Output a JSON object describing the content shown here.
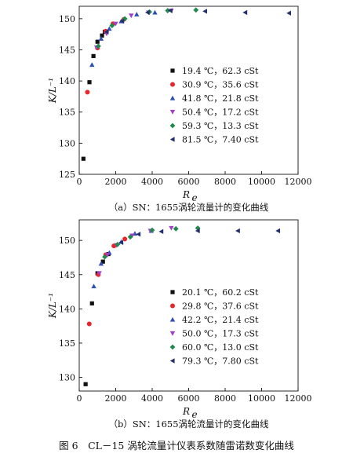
{
  "figure_caption": "图 6　CL－15 涡轮流量计仪表系数随雷诺数变化曲线",
  "chart_data": [
    {
      "type": "scatter",
      "caption": "（a）SN：1655涡轮流量计的变化曲线",
      "xlabel_main": "R",
      "xlabel_sub": "e",
      "ylabel": "K/L⁻¹",
      "xlim": [
        0,
        12000
      ],
      "ylim": [
        125,
        152
      ],
      "xticks": [
        0,
        2000,
        4000,
        6000,
        8000,
        10000,
        12000
      ],
      "yticks": [
        125,
        130,
        135,
        140,
        145,
        150
      ],
      "series": [
        {
          "name": "19.4 ℃，62.3 cSt",
          "marker": "square",
          "color": "#111111",
          "points": [
            [
              230,
              127.5
            ],
            [
              560,
              139.8
            ],
            [
              780,
              144.0
            ],
            [
              1000,
              146.3
            ],
            [
              1250,
              147.3
            ],
            [
              1400,
              147.9
            ]
          ]
        },
        {
          "name": "30.9 ℃，35.6 cSt",
          "marker": "circle",
          "color": "#e8262c",
          "points": [
            [
              450,
              138.2
            ],
            [
              1000,
              145.3
            ],
            [
              1450,
              148.0
            ],
            [
              1850,
              149.2
            ],
            [
              2450,
              149.9
            ]
          ]
        },
        {
          "name": "41.8 ℃，21.8 cSt",
          "marker": "triangle-up",
          "color": "#2e4fb8",
          "points": [
            [
              700,
              142.6
            ],
            [
              1200,
              146.8
            ],
            [
              1650,
              148.4
            ],
            [
              2300,
              149.6
            ],
            [
              3150,
              150.7
            ],
            [
              4150,
              151.0
            ]
          ]
        },
        {
          "name": "50.4 ℃，17.2 cSt",
          "marker": "triangle-down",
          "color": "#a040c8",
          "points": [
            [
              950,
              145.4
            ],
            [
              1500,
              147.6
            ],
            [
              2000,
              149.2
            ],
            [
              2850,
              150.5
            ],
            [
              3800,
              151.0
            ],
            [
              5050,
              151.3
            ]
          ]
        },
        {
          "name": "59.3 ℃，13.3 cSt",
          "marker": "diamond",
          "color": "#1f8a4c",
          "points": [
            [
              1050,
              145.6
            ],
            [
              1800,
              148.9
            ],
            [
              2500,
              150.0
            ],
            [
              3850,
              151.1
            ],
            [
              4850,
              151.3
            ],
            [
              6400,
              151.4
            ]
          ]
        },
        {
          "name": "81.5 ℃，7.40 cSt",
          "marker": "triangle-left",
          "color": "#22306e",
          "points": [
            [
              1500,
              147.9
            ],
            [
              2350,
              149.6
            ],
            [
              3750,
              151.0
            ],
            [
              5000,
              151.3
            ],
            [
              6900,
              151.2
            ],
            [
              9100,
              151.0
            ],
            [
              11500,
              150.9
            ]
          ]
        }
      ]
    },
    {
      "type": "scatter",
      "caption": "（b）SN：1655涡轮流量计的变化曲线",
      "xlabel_main": "R",
      "xlabel_sub": "e",
      "ylabel": "K/L⁻¹",
      "xlim": [
        0,
        12000
      ],
      "ylim": [
        128,
        153
      ],
      "xticks": [
        0,
        2000,
        4000,
        6000,
        8000,
        10000,
        12000
      ],
      "yticks": [
        130,
        135,
        140,
        145,
        150
      ],
      "series": [
        {
          "name": "20.1 ℃，60.2 cSt",
          "marker": "square",
          "color": "#111111",
          "points": [
            [
              350,
              129.0
            ],
            [
              700,
              140.8
            ],
            [
              1000,
              145.2
            ],
            [
              1300,
              146.9
            ],
            [
              1600,
              148.0
            ]
          ]
        },
        {
          "name": "29.8 ℃，37.6 cSt",
          "marker": "circle",
          "color": "#e8262c",
          "points": [
            [
              550,
              137.8
            ],
            [
              1050,
              145.0
            ],
            [
              1450,
              147.9
            ],
            [
              1900,
              149.2
            ],
            [
              2500,
              150.2
            ]
          ]
        },
        {
          "name": "42.2 ℃，21.4 cSt",
          "marker": "triangle-up",
          "color": "#2e4fb8",
          "points": [
            [
              800,
              143.3
            ],
            [
              1200,
              146.6
            ],
            [
              1650,
              148.2
            ],
            [
              2300,
              149.8
            ],
            [
              3050,
              151.0
            ],
            [
              3950,
              151.4
            ]
          ]
        },
        {
          "name": "50.0 ℃，17.3 cSt",
          "marker": "triangle-down",
          "color": "#a040c8",
          "points": [
            [
              1100,
              145.2
            ],
            [
              1550,
              147.9
            ],
            [
              2050,
              149.3
            ],
            [
              2900,
              150.7
            ],
            [
              3900,
              151.4
            ],
            [
              5050,
              151.8
            ]
          ]
        },
        {
          "name": "60.0 ℃，13.0 cSt",
          "marker": "diamond",
          "color": "#1f8a4c",
          "points": [
            [
              1400,
              147.6
            ],
            [
              2100,
              149.4
            ],
            [
              2800,
              150.5
            ],
            [
              4000,
              151.5
            ],
            [
              5300,
              151.7
            ],
            [
              6500,
              151.8
            ]
          ]
        },
        {
          "name": "79.3 ℃，7.80 cSt",
          "marker": "triangle-left",
          "color": "#22306e",
          "points": [
            [
              2300,
              149.7
            ],
            [
              3250,
              150.9
            ],
            [
              4500,
              151.3
            ],
            [
              6500,
              151.4
            ],
            [
              8700,
              151.4
            ],
            [
              10900,
              151.4
            ]
          ]
        }
      ]
    }
  ]
}
